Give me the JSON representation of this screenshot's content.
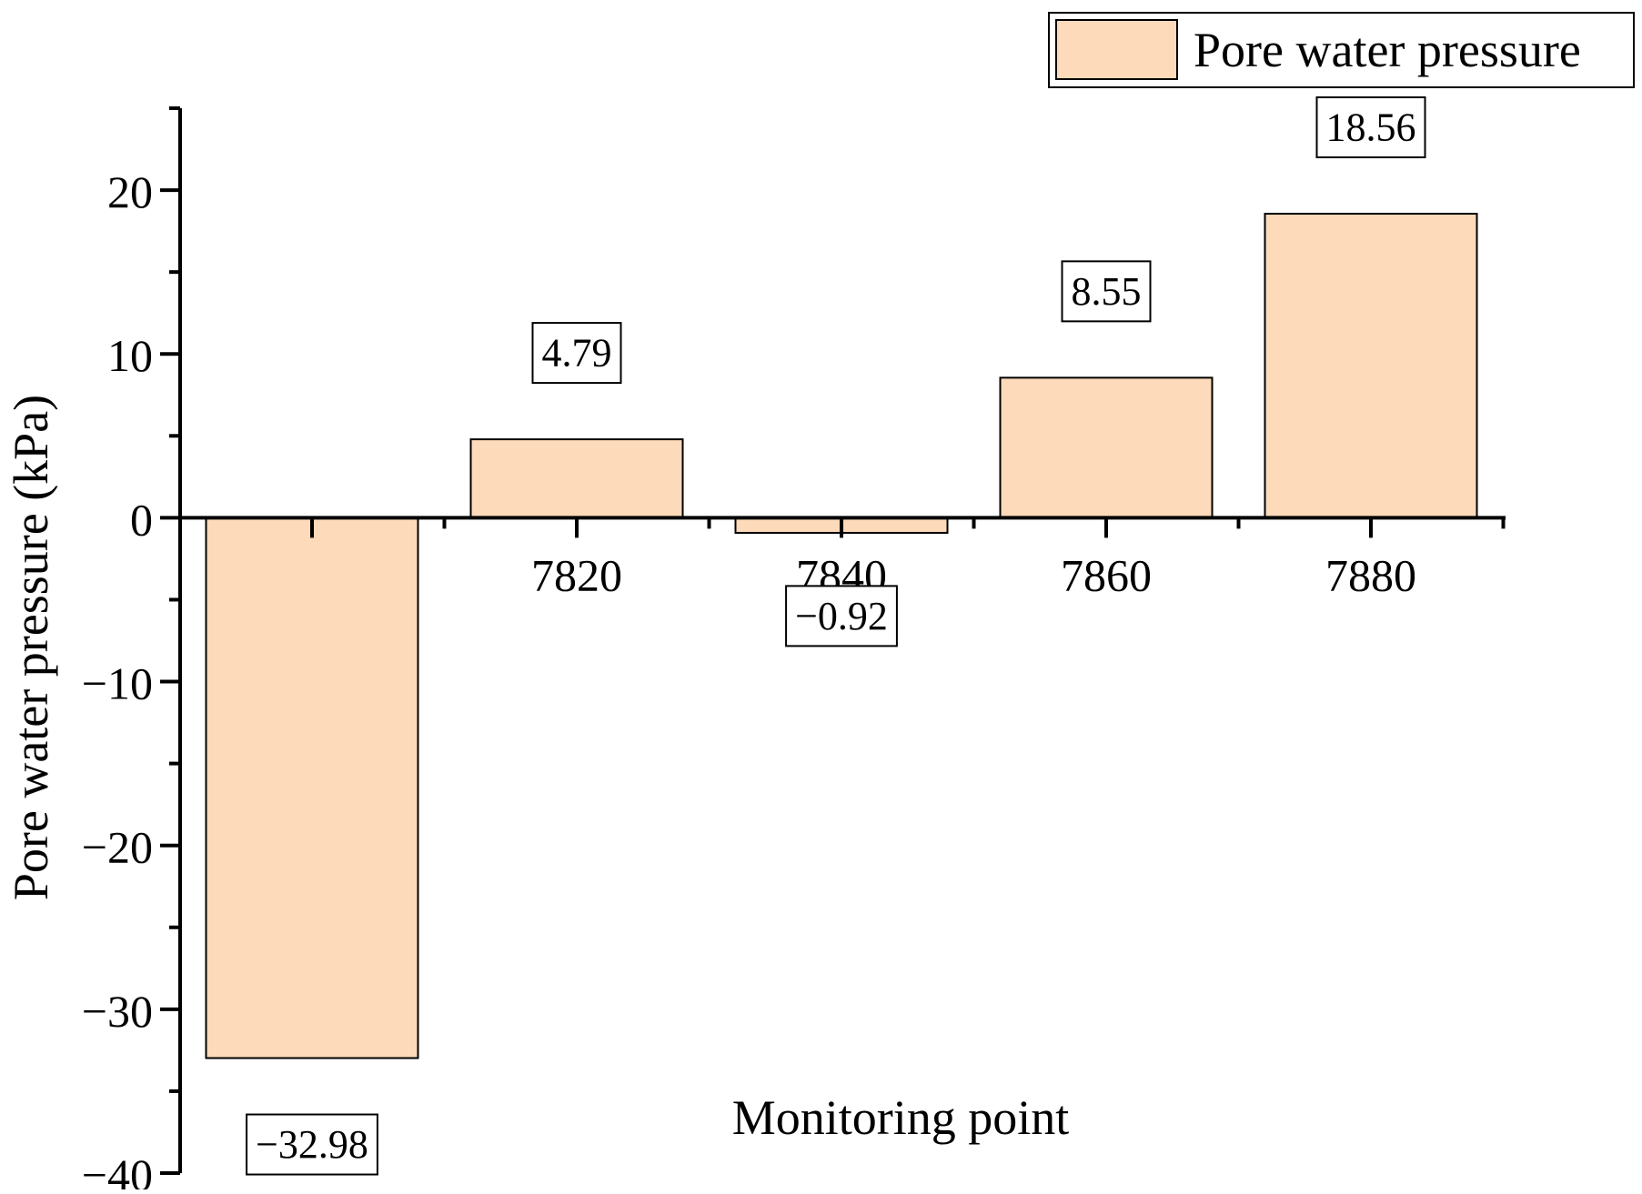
{
  "chart_data": {
    "type": "bar",
    "title": "",
    "xlabel": "Monitoring point",
    "ylabel": "Pore water pressure (kPa)",
    "categories": [
      "",
      "7820",
      "7840",
      "7860",
      "7880"
    ],
    "series": [
      {
        "name": "Pore water pressure",
        "values": [
          -32.98,
          4.79,
          -0.92,
          8.55,
          18.56
        ],
        "data_labels": [
          "−32.98",
          "4.79",
          "−0.92",
          "8.55",
          "18.56"
        ]
      }
    ],
    "ylim": [
      -40,
      25
    ],
    "yticks": [
      -40,
      -30,
      -20,
      -10,
      0,
      10,
      20
    ],
    "ytick_labels": [
      "−40",
      "−30",
      "−20",
      "−10",
      "0",
      "10",
      "20"
    ],
    "grid": false,
    "legend": {
      "position": "top-right",
      "entries": [
        "Pore water pressure"
      ]
    },
    "colors": {
      "bar_fill": "#FDDAB9",
      "bar_stroke": "#000000",
      "axis": "#000000"
    }
  }
}
